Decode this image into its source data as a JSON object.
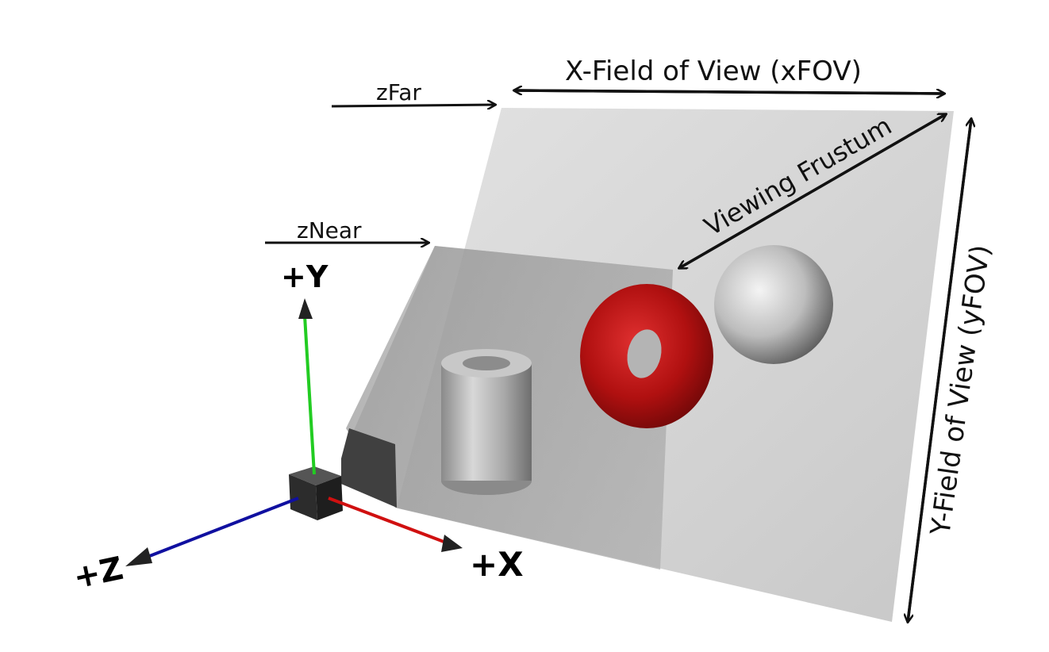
{
  "labels": {
    "z_far": "zFar",
    "z_near": "zNear",
    "x_fov": "X-Field of View (xFOV)",
    "y_fov": "Y-Field of View (yFOV)",
    "viewing_frustum": "Viewing Frustum",
    "axis_x": "+X",
    "axis_y": "+Y",
    "axis_z": "+Z"
  },
  "colors": {
    "axis_x": "#d01010",
    "axis_y": "#22cc22",
    "axis_z": "#1010a0",
    "torus": "#c81010",
    "far_plane": "#d4d4d4",
    "near_plane": "#8c8c8c",
    "camera": "#3a3a3a"
  },
  "objects": [
    "camera",
    "cylinder",
    "torus",
    "sphere"
  ]
}
